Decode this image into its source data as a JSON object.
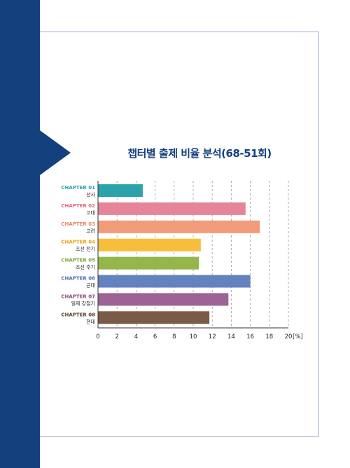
{
  "colors": {
    "band": "#14407e",
    "frame": "#9aaacb",
    "title": "#14407e"
  },
  "chart_data": {
    "type": "bar",
    "orientation": "horizontal",
    "title": "챕터별 출제 비율 분석(68-51회)",
    "xlim": [
      0,
      20
    ],
    "x_ticks": [
      "0",
      "2",
      "4",
      "6",
      "8",
      "10",
      "12",
      "14",
      "16",
      "18",
      "20"
    ],
    "x_unit": "[%]",
    "grid": "vertical dashed",
    "categories": [
      {
        "chapter": "CHAPTER 01",
        "name": "선사",
        "value": 4.7,
        "color": "#2ba3ac",
        "label_color": "#2a9faa"
      },
      {
        "chapter": "CHAPTER 02",
        "name": "고대",
        "value": 15.5,
        "color": "#e6849a",
        "label_color": "#dc6b86"
      },
      {
        "chapter": "CHAPTER 03",
        "name": "고려",
        "value": 17.0,
        "color": "#f29b78",
        "label_color": "#ea8762"
      },
      {
        "chapter": "CHAPTER 04",
        "name": "조선 전기",
        "value": 10.8,
        "color": "#f9bd3e",
        "label_color": "#e8a417"
      },
      {
        "chapter": "CHAPTER 05",
        "name": "조선 후기",
        "value": 10.6,
        "color": "#94b64b",
        "label_color": "#7ea334"
      },
      {
        "chapter": "CHAPTER 06",
        "name": "근대",
        "value": 16.0,
        "color": "#6582c0",
        "label_color": "#4d6db2"
      },
      {
        "chapter": "CHAPTER 07",
        "name": "일제 강점기",
        "value": 13.7,
        "color": "#9c6394",
        "label_color": "#8c4c82"
      },
      {
        "chapter": "CHAPTER 08",
        "name": "현대",
        "value": 11.7,
        "color": "#7a5a48",
        "label_color": "#5b4236"
      }
    ]
  }
}
